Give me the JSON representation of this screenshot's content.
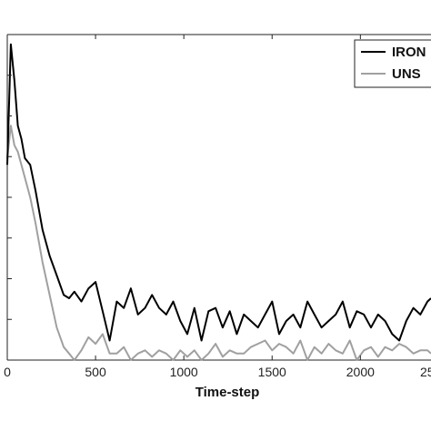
{
  "chart_data": {
    "type": "line",
    "title": "",
    "xlabel": "Time-step",
    "ylabel": "",
    "xlim": [
      0,
      2400
    ],
    "ylim": [
      0,
      1
    ],
    "x_ticks": [
      0,
      500,
      1000,
      1500,
      2000
    ],
    "x_tick_labels": [
      "0",
      "500",
      "1000",
      "1500",
      "2000"
    ],
    "edge_tick_label": "25",
    "legend": {
      "position": "top-right",
      "entries": [
        "IRON",
        "UNS"
      ]
    },
    "grid": false,
    "series": [
      {
        "name": "IRON",
        "color": "#000000",
        "x": [
          0,
          20,
          40,
          60,
          80,
          100,
          130,
          160,
          200,
          240,
          280,
          320,
          350,
          380,
          420,
          460,
          500,
          540,
          580,
          620,
          660,
          700,
          740,
          780,
          820,
          860,
          900,
          940,
          980,
          1020,
          1060,
          1100,
          1140,
          1180,
          1220,
          1260,
          1300,
          1340,
          1380,
          1420,
          1460,
          1500,
          1540,
          1580,
          1620,
          1660,
          1700,
          1740,
          1780,
          1820,
          1860,
          1900,
          1940,
          1980,
          2020,
          2060,
          2100,
          2140,
          2180,
          2220,
          2260,
          2300,
          2340,
          2380,
          2400
        ],
        "y": [
          0.6,
          0.97,
          0.86,
          0.72,
          0.68,
          0.62,
          0.6,
          0.52,
          0.4,
          0.32,
          0.26,
          0.2,
          0.19,
          0.21,
          0.18,
          0.22,
          0.24,
          0.15,
          0.06,
          0.18,
          0.16,
          0.22,
          0.14,
          0.16,
          0.2,
          0.16,
          0.14,
          0.18,
          0.12,
          0.08,
          0.16,
          0.06,
          0.15,
          0.16,
          0.1,
          0.15,
          0.08,
          0.14,
          0.12,
          0.1,
          0.14,
          0.18,
          0.08,
          0.12,
          0.14,
          0.1,
          0.18,
          0.14,
          0.1,
          0.12,
          0.14,
          0.18,
          0.1,
          0.15,
          0.14,
          0.1,
          0.14,
          0.12,
          0.08,
          0.06,
          0.12,
          0.16,
          0.14,
          0.18,
          0.19
        ]
      },
      {
        "name": "UNS",
        "color": "#a0a0a0",
        "x": [
          0,
          20,
          40,
          60,
          80,
          100,
          130,
          160,
          200,
          240,
          280,
          320,
          350,
          380,
          420,
          460,
          500,
          540,
          580,
          620,
          660,
          700,
          740,
          780,
          820,
          860,
          900,
          940,
          980,
          1020,
          1060,
          1100,
          1140,
          1180,
          1220,
          1260,
          1300,
          1340,
          1380,
          1420,
          1460,
          1500,
          1540,
          1580,
          1620,
          1660,
          1700,
          1740,
          1780,
          1820,
          1860,
          1900,
          1940,
          1980,
          2020,
          2060,
          2100,
          2140,
          2180,
          2220,
          2260,
          2300,
          2340,
          2380,
          2400
        ],
        "y": [
          0.62,
          0.72,
          0.66,
          0.64,
          0.6,
          0.56,
          0.5,
          0.42,
          0.3,
          0.2,
          0.1,
          0.04,
          0.02,
          0.0,
          0.03,
          0.07,
          0.05,
          0.08,
          0.02,
          0.02,
          0.04,
          0.0,
          0.02,
          0.03,
          0.01,
          0.03,
          0.02,
          0.0,
          0.03,
          0.01,
          0.03,
          0.0,
          0.02,
          0.05,
          0.01,
          0.03,
          0.02,
          0.02,
          0.04,
          0.05,
          0.06,
          0.03,
          0.05,
          0.04,
          0.02,
          0.06,
          0.0,
          0.04,
          0.02,
          0.05,
          0.03,
          0.02,
          0.06,
          0.0,
          0.03,
          0.04,
          0.01,
          0.04,
          0.03,
          0.05,
          0.04,
          0.02,
          0.03,
          0.03,
          0.02
        ]
      }
    ]
  }
}
